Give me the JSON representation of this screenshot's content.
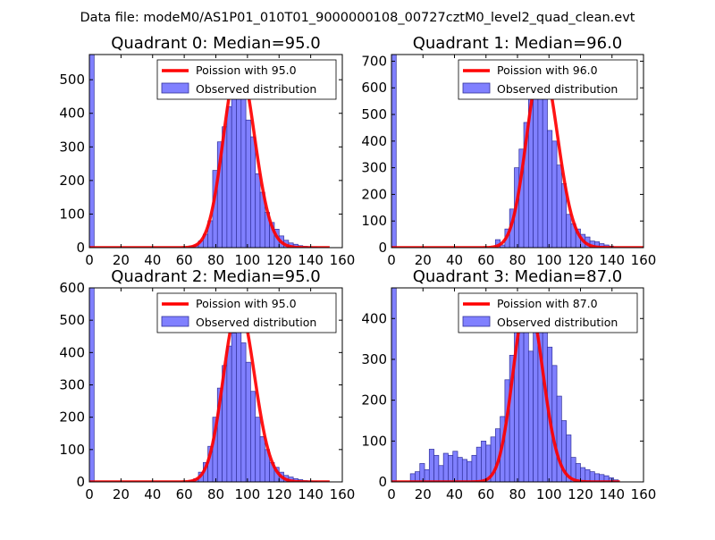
{
  "figure_title": "Data file: modeM0/AS1P01_010T01_9000000108_00727cztM0_level2_quad_clean.evt",
  "colors": {
    "hist_fill": "#8080ff",
    "hist_edge": "#30309a",
    "poisson_line": "#ff0000"
  },
  "chart_data": [
    {
      "type": "bar",
      "title": "Quadrant 0: Median=95.0",
      "xlim": [
        0,
        160
      ],
      "ylim": [
        0,
        575
      ],
      "xticks": [
        "0",
        "20",
        "40",
        "60",
        "80",
        "100",
        "120",
        "140",
        "160"
      ],
      "yticks": [
        0,
        100,
        200,
        300,
        400,
        500
      ],
      "legend": {
        "placement": "top-right",
        "entries": [
          "Poission with 95.0",
          "Observed distribution"
        ]
      },
      "poisson": {
        "label": "Poission with 95.0",
        "mean": 95.0,
        "amplitude": 550,
        "x_range": [
          0,
          152
        ]
      },
      "histogram": {
        "label": "Observed distribution",
        "bin_width": 3,
        "bins": [
          [
            0,
            575
          ],
          [
            63,
            5
          ],
          [
            66,
            8
          ],
          [
            69,
            20
          ],
          [
            72,
            40
          ],
          [
            75,
            80
          ],
          [
            78,
            230
          ],
          [
            81,
            315
          ],
          [
            84,
            360
          ],
          [
            87,
            420
          ],
          [
            90,
            470
          ],
          [
            93,
            480
          ],
          [
            96,
            455
          ],
          [
            99,
            380
          ],
          [
            102,
            330
          ],
          [
            105,
            220
          ],
          [
            108,
            165
          ],
          [
            111,
            105
          ],
          [
            114,
            75
          ],
          [
            117,
            55
          ],
          [
            120,
            35
          ],
          [
            123,
            22
          ],
          [
            126,
            14
          ],
          [
            129,
            10
          ],
          [
            132,
            6
          ],
          [
            135,
            4
          ],
          [
            138,
            3
          ],
          [
            141,
            2
          ]
        ]
      }
    },
    {
      "type": "bar",
      "title": "Quadrant 1: Median=96.0",
      "xlim": [
        0,
        160
      ],
      "ylim": [
        0,
        725
      ],
      "xticks": [
        "0",
        "20",
        "40",
        "60",
        "80",
        "100",
        "120",
        "140",
        "160"
      ],
      "yticks": [
        0,
        100,
        200,
        300,
        400,
        500,
        600,
        700
      ],
      "legend": {
        "placement": "top-right",
        "entries": [
          "Poission with 96.0",
          "Observed distribution"
        ]
      },
      "poisson": {
        "label": "Poission with 96.0",
        "mean": 96.0,
        "amplitude": 690,
        "x_range": [
          0,
          160
        ]
      },
      "histogram": {
        "label": "Observed distribution",
        "bin_width": 3,
        "bins": [
          [
            0,
            725
          ],
          [
            66,
            30
          ],
          [
            69,
            10
          ],
          [
            72,
            70
          ],
          [
            75,
            145
          ],
          [
            78,
            300
          ],
          [
            81,
            370
          ],
          [
            84,
            470
          ],
          [
            87,
            560
          ],
          [
            90,
            600
          ],
          [
            93,
            620
          ],
          [
            96,
            580
          ],
          [
            99,
            440
          ],
          [
            102,
            400
          ],
          [
            105,
            310
          ],
          [
            108,
            240
          ],
          [
            111,
            125
          ],
          [
            114,
            90
          ],
          [
            117,
            70
          ],
          [
            120,
            50
          ],
          [
            123,
            40
          ],
          [
            126,
            25
          ],
          [
            129,
            22
          ],
          [
            132,
            15
          ],
          [
            135,
            10
          ],
          [
            138,
            6
          ]
        ]
      }
    },
    {
      "type": "bar",
      "title": "Quadrant 2: Median=95.0",
      "xlim": [
        0,
        160
      ],
      "ylim": [
        0,
        600
      ],
      "xticks": [
        "0",
        "20",
        "40",
        "60",
        "80",
        "100",
        "120",
        "140",
        "160"
      ],
      "yticks": [
        0,
        100,
        200,
        300,
        400,
        500,
        600
      ],
      "legend": {
        "placement": "top-right",
        "entries": [
          "Poission with 95.0",
          "Observed distribution"
        ]
      },
      "poisson": {
        "label": "Poission with 95.0",
        "mean": 95.0,
        "amplitude": 545,
        "x_range": [
          0,
          152
        ]
      },
      "histogram": {
        "label": "Observed distribution",
        "bin_width": 3,
        "bins": [
          [
            0,
            600
          ],
          [
            63,
            5
          ],
          [
            66,
            10
          ],
          [
            69,
            30
          ],
          [
            72,
            60
          ],
          [
            75,
            110
          ],
          [
            78,
            200
          ],
          [
            81,
            290
          ],
          [
            84,
            360
          ],
          [
            87,
            420
          ],
          [
            90,
            460
          ],
          [
            93,
            480
          ],
          [
            96,
            430
          ],
          [
            99,
            370
          ],
          [
            102,
            280
          ],
          [
            105,
            200
          ],
          [
            108,
            140
          ],
          [
            111,
            100
          ],
          [
            114,
            60
          ],
          [
            117,
            45
          ],
          [
            120,
            30
          ],
          [
            123,
            20
          ],
          [
            126,
            15
          ],
          [
            129,
            10
          ],
          [
            132,
            7
          ],
          [
            135,
            4
          ],
          [
            138,
            3
          ],
          [
            141,
            2
          ]
        ]
      }
    },
    {
      "type": "bar",
      "title": "Quadrant 3: Median=87.0",
      "xlim": [
        0,
        160
      ],
      "ylim": [
        0,
        475
      ],
      "xticks": [
        "0",
        "20",
        "40",
        "60",
        "80",
        "100",
        "120",
        "140",
        "160"
      ],
      "yticks": [
        0,
        100,
        200,
        300,
        400
      ],
      "legend": {
        "placement": "top-right",
        "entries": [
          "Poission with 87.0",
          "Observed distribution"
        ]
      },
      "poisson": {
        "label": "Poission with 87.0",
        "mean": 87.0,
        "amplitude": 450,
        "x_range": [
          0,
          145
        ]
      },
      "histogram": {
        "label": "Observed distribution",
        "bin_width": 3,
        "bins": [
          [
            0,
            475
          ],
          [
            12,
            20
          ],
          [
            15,
            25
          ],
          [
            18,
            45
          ],
          [
            21,
            30
          ],
          [
            24,
            80
          ],
          [
            27,
            65
          ],
          [
            30,
            40
          ],
          [
            33,
            70
          ],
          [
            36,
            65
          ],
          [
            39,
            75
          ],
          [
            42,
            60
          ],
          [
            45,
            55
          ],
          [
            48,
            50
          ],
          [
            51,
            65
          ],
          [
            54,
            85
          ],
          [
            57,
            100
          ],
          [
            60,
            90
          ],
          [
            63,
            110
          ],
          [
            66,
            130
          ],
          [
            69,
            160
          ],
          [
            72,
            250
          ],
          [
            75,
            310
          ],
          [
            78,
            370
          ],
          [
            81,
            380
          ],
          [
            84,
            400
          ],
          [
            87,
            320
          ],
          [
            90,
            450
          ],
          [
            93,
            400
          ],
          [
            96,
            380
          ],
          [
            99,
            330
          ],
          [
            102,
            285
          ],
          [
            105,
            210
          ],
          [
            108,
            150
          ],
          [
            111,
            115
          ],
          [
            114,
            60
          ],
          [
            117,
            45
          ],
          [
            120,
            35
          ],
          [
            123,
            30
          ],
          [
            126,
            25
          ],
          [
            129,
            20
          ],
          [
            132,
            18
          ],
          [
            135,
            15
          ],
          [
            138,
            10
          ],
          [
            141,
            5
          ]
        ]
      }
    }
  ]
}
